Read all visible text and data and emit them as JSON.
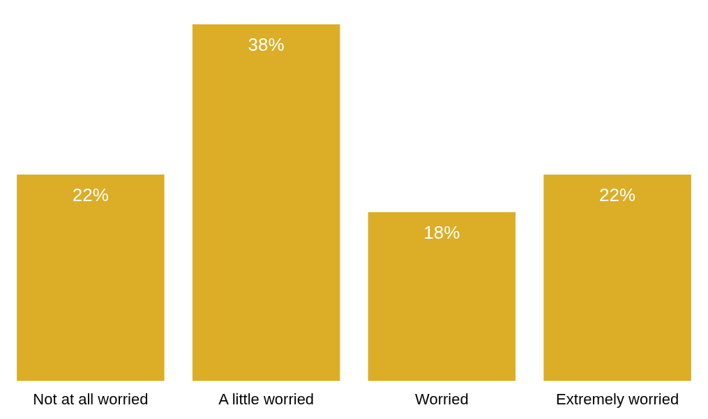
{
  "chart_data": {
    "type": "bar",
    "categories": [
      "Not at all worried",
      "A little worried",
      "Worried",
      "Extremely worried"
    ],
    "values": [
      22,
      38,
      18,
      22
    ],
    "value_labels": [
      "22%",
      "38%",
      "18%",
      "22%"
    ],
    "color": "#dcad26",
    "grid": false,
    "legend": false
  }
}
